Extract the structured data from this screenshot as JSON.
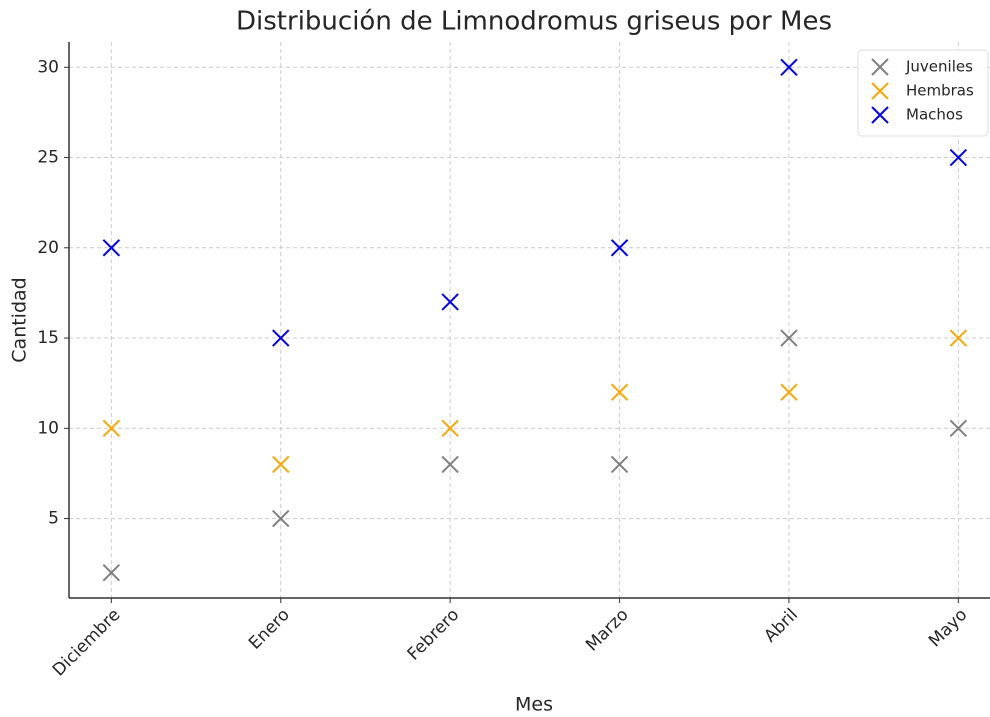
{
  "chart_data": {
    "type": "scatter",
    "title": "Distribución de Limnodromus griseus por Mes",
    "xlabel": "Mes",
    "ylabel": "Cantidad",
    "categories": [
      "Diciembre",
      "Enero",
      "Febrero",
      "Marzo",
      "Abril",
      "Mayo"
    ],
    "series": [
      {
        "name": "Juveniles",
        "color": "#808080",
        "values": [
          2,
          5,
          8,
          8,
          15,
          10
        ]
      },
      {
        "name": "Hembras",
        "color": "#ffa500",
        "values": [
          10,
          8,
          10,
          12,
          12,
          15
        ]
      },
      {
        "name": "Machos",
        "color": "#0000ff",
        "values": [
          20,
          15,
          17,
          20,
          30,
          25
        ]
      }
    ],
    "ylim": [
      0.6,
      31.4
    ],
    "yticks": [
      5,
      10,
      15,
      20,
      25,
      30
    ],
    "grid": true,
    "legend": "upper right"
  }
}
